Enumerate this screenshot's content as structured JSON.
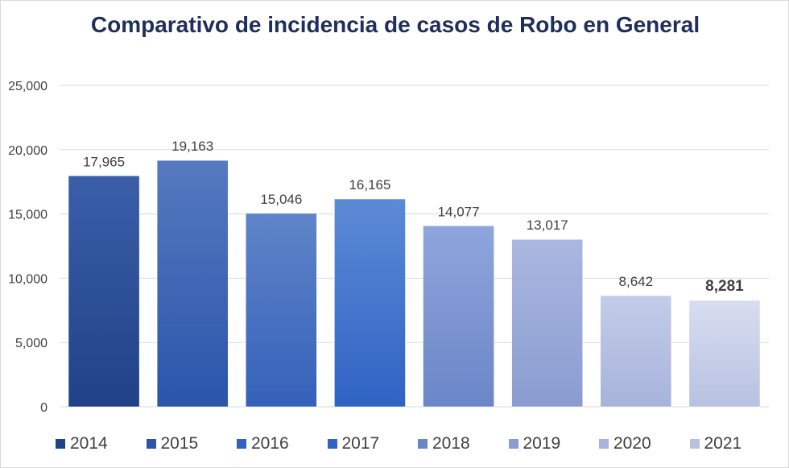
{
  "chart_data": {
    "type": "bar",
    "title": "Comparativo de incidencia de casos de Robo en General",
    "categories": [
      "2014",
      "2015",
      "2016",
      "2017",
      "2018",
      "2019",
      "2020",
      "2021"
    ],
    "values": [
      17965,
      19163,
      15046,
      16165,
      14077,
      13017,
      8642,
      8281
    ],
    "value_labels": [
      "17,965",
      "19,163",
      "15,046",
      "16,165",
      "14,077",
      "13,017",
      "8,642",
      "8,281"
    ],
    "bold_label_index": 7,
    "ylim": [
      0,
      25000
    ],
    "yticks": [
      0,
      5000,
      10000,
      15000,
      20000,
      25000
    ],
    "ytick_labels": [
      "0",
      "5,000",
      "10,000",
      "15,000",
      "20,000",
      "25,000"
    ],
    "grid": true,
    "legend_position": "bottom",
    "colors": [
      [
        "#3a5ea8",
        "#1f4287"
      ],
      [
        "#5679c0",
        "#2a55aa"
      ],
      [
        "#5f84c8",
        "#3461ba"
      ],
      [
        "#5c8ad6",
        "#2f63c4"
      ],
      [
        "#8ea6dc",
        "#6b86c8"
      ],
      [
        "#aab7e0",
        "#8a9cd0"
      ],
      [
        "#c3cce8",
        "#a7b3dc"
      ],
      [
        "#d8ddf0",
        "#b8c1e2"
      ]
    ]
  }
}
